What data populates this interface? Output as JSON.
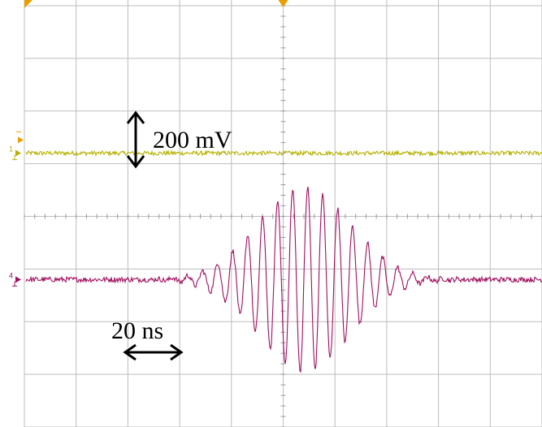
{
  "chart_data": {
    "type": "line",
    "title": "",
    "grid": true,
    "axes_visible": false,
    "grid_divisions": {
      "x": 10,
      "y": 8
    },
    "scale_annotations": {
      "voltage": "200 mV",
      "time": "20 ns"
    },
    "series": [
      {
        "channel_marker": "1",
        "color": "#b5b000",
        "kind": "flat-noisy-baseline",
        "level_div": 1.2,
        "noise_div": 0.04
      },
      {
        "channel_marker": "4",
        "color": "#a0105f",
        "kind": "gaussian-burst",
        "level_div": -1.2,
        "center_div": 5.4,
        "envelope_sigma_div": 0.9,
        "peak_amplitude_div": 1.75,
        "period_div": 0.29,
        "noise_div": 0.05
      }
    ],
    "markers": [
      {
        "name": "trigger-marker",
        "color": "#e8a000"
      },
      {
        "name": "trigger-level-marker",
        "color": "#e8a000"
      }
    ]
  }
}
